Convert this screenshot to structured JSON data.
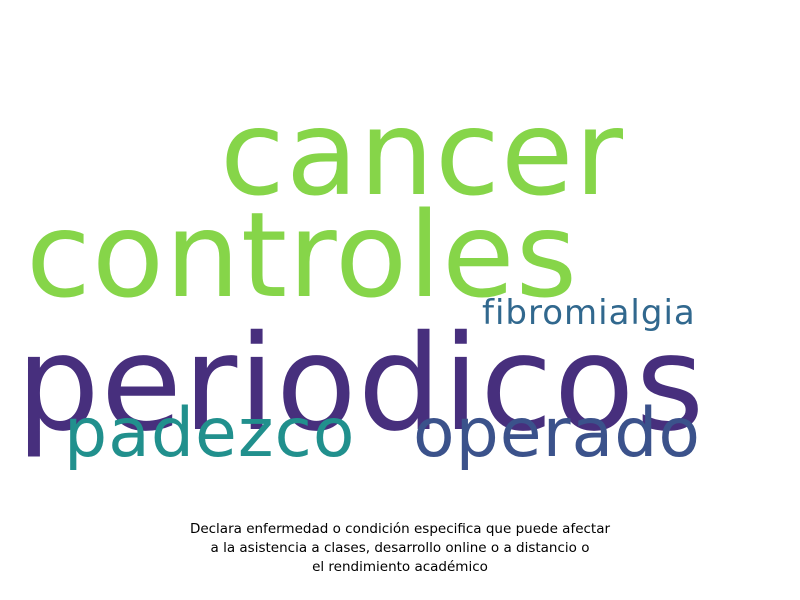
{
  "words": [
    {
      "text": "cancer",
      "color": "#86d549"
    },
    {
      "text": "controles",
      "color": "#86d549"
    },
    {
      "text": "fibromialgia",
      "color": "#31688e"
    },
    {
      "text": "periodicos",
      "color": "#472f7d"
    },
    {
      "text": "padezco",
      "color": "#21908d"
    },
    {
      "text": "operado",
      "color": "#3b528b"
    }
  ],
  "caption": {
    "line1": "Declara enfermedad o condición especifica que puede afectar",
    "line2": "a la asistencia a clases, desarrollo online o a distancio o",
    "line3": "el rendimiento académico"
  }
}
